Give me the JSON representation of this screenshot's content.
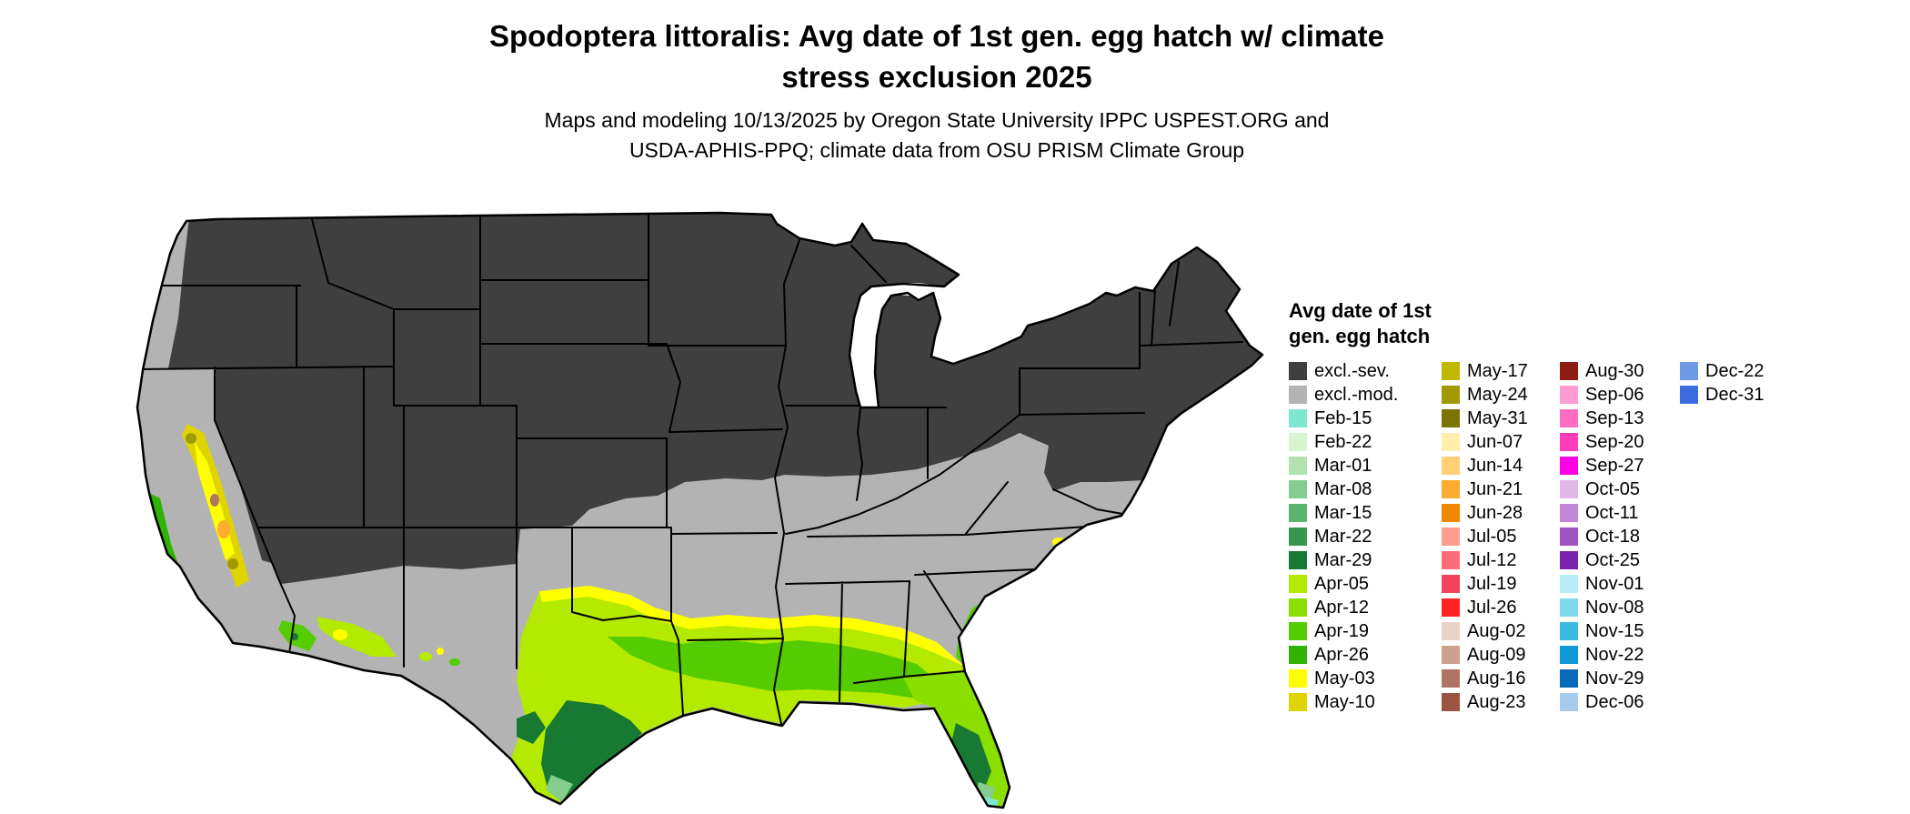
{
  "title": {
    "line1": "Spodoptera littoralis: Avg date of 1st gen. egg hatch w/ climate",
    "line2": "stress exclusion 2025"
  },
  "subtitle": {
    "line1": "Maps and modeling 10/13/2025 by Oregon State University IPPC USPEST.ORG and",
    "line2": "USDA-APHIS-PPQ; climate data from OSU PRISM Climate Group"
  },
  "legend": {
    "title_line1": "Avg date of 1st",
    "title_line2": "gen. egg hatch",
    "columns": [
      [
        {
          "label": "excl.-sev.",
          "color": "#3f3f3f"
        },
        {
          "label": "excl.-mod.",
          "color": "#b3b3b3"
        },
        {
          "label": "Feb-15",
          "color": "#7de8cf"
        },
        {
          "label": "Feb-22",
          "color": "#d8f5cf"
        },
        {
          "label": "Mar-01",
          "color": "#b2e3ae"
        },
        {
          "label": "Mar-08",
          "color": "#84cd8e"
        },
        {
          "label": "Mar-15",
          "color": "#5bb46d"
        },
        {
          "label": "Mar-22",
          "color": "#36984e"
        },
        {
          "label": "Mar-29",
          "color": "#187a32"
        },
        {
          "label": "Apr-05",
          "color": "#b4e900"
        },
        {
          "label": "Apr-12",
          "color": "#8adf00"
        },
        {
          "label": "Apr-19",
          "color": "#54cc00"
        },
        {
          "label": "Apr-26",
          "color": "#2db300"
        },
        {
          "label": "May-03",
          "color": "#ffff00"
        },
        {
          "label": "May-10",
          "color": "#dfd400"
        }
      ],
      [
        {
          "label": "May-17",
          "color": "#c1b700"
        },
        {
          "label": "May-24",
          "color": "#a29900"
        },
        {
          "label": "May-31",
          "color": "#7c7400"
        },
        {
          "label": "Jun-07",
          "color": "#ffefac"
        },
        {
          "label": "Jun-14",
          "color": "#ffd075"
        },
        {
          "label": "Jun-21",
          "color": "#ffac32"
        },
        {
          "label": "Jun-28",
          "color": "#ef8900"
        },
        {
          "label": "Jul-05",
          "color": "#ff9d8e"
        },
        {
          "label": "Jul-12",
          "color": "#ff6d79"
        },
        {
          "label": "Jul-19",
          "color": "#f1445b"
        },
        {
          "label": "Jul-26",
          "color": "#ff2323"
        },
        {
          "label": "Aug-02",
          "color": "#e9d3c7"
        },
        {
          "label": "Aug-09",
          "color": "#cea08e"
        },
        {
          "label": "Aug-16",
          "color": "#af7562"
        },
        {
          "label": "Aug-23",
          "color": "#9b543f"
        }
      ],
      [
        {
          "label": "Aug-30",
          "color": "#8e1e13"
        },
        {
          "label": "Sep-06",
          "color": "#ff9dd3"
        },
        {
          "label": "Sep-13",
          "color": "#ff6dc3"
        },
        {
          "label": "Sep-20",
          "color": "#ff3cba"
        },
        {
          "label": "Sep-27",
          "color": "#ff00e5"
        },
        {
          "label": "Oct-05",
          "color": "#e2b7e7"
        },
        {
          "label": "Oct-11",
          "color": "#c186d5"
        },
        {
          "label": "Oct-18",
          "color": "#9f53c1"
        },
        {
          "label": "Oct-25",
          "color": "#7c23ac"
        },
        {
          "label": "Nov-01",
          "color": "#b7ebf4"
        },
        {
          "label": "Nov-08",
          "color": "#7ed8ec"
        },
        {
          "label": "Nov-15",
          "color": "#3cbadf"
        },
        {
          "label": "Nov-22",
          "color": "#0e98d5"
        },
        {
          "label": "Nov-29",
          "color": "#096ab7"
        },
        {
          "label": "Dec-06",
          "color": "#a7ccea"
        }
      ],
      [
        {
          "label": "Dec-22",
          "color": "#6d99e7"
        },
        {
          "label": "Dec-31",
          "color": "#3c6ddf"
        }
      ]
    ]
  }
}
